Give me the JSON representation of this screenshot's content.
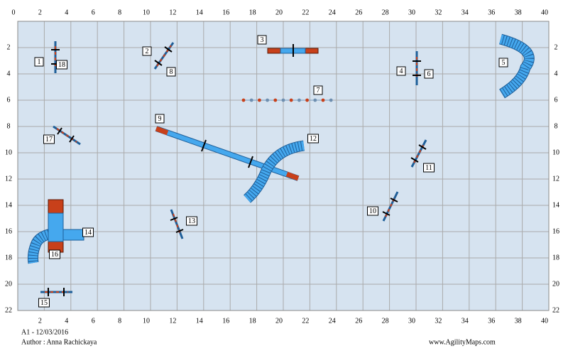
{
  "axes": {
    "top_labels": [
      0,
      2,
      4,
      6,
      8,
      10,
      12,
      14,
      16,
      18,
      20,
      22,
      24,
      26,
      28,
      30,
      32,
      34,
      36,
      38,
      40
    ],
    "bottom_labels": [
      2,
      4,
      6,
      8,
      10,
      12,
      14,
      16,
      18,
      20,
      22,
      24,
      26,
      28,
      30,
      32,
      34,
      36,
      38,
      40
    ],
    "left_labels": [
      2,
      4,
      6,
      8,
      10,
      12,
      14,
      16,
      18,
      20,
      22
    ],
    "right_labels": [
      2,
      4,
      6,
      8,
      10,
      12,
      14,
      16,
      18,
      20,
      22
    ]
  },
  "obstacles": [
    {
      "label": "1"
    },
    {
      "label": "2"
    },
    {
      "label": "3"
    },
    {
      "label": "4"
    },
    {
      "label": "5"
    },
    {
      "label": "6"
    },
    {
      "label": "7"
    },
    {
      "label": "8"
    },
    {
      "label": "9"
    },
    {
      "label": "10"
    },
    {
      "label": "11"
    },
    {
      "label": "12"
    },
    {
      "label": "13"
    },
    {
      "label": "14"
    },
    {
      "label": "15"
    },
    {
      "label": "16"
    },
    {
      "label": "17"
    },
    {
      "label": "18"
    }
  ],
  "footer": {
    "course": "A1 - 12/03/2016",
    "author": "Author : Anna Rachickaya",
    "site": "www.AgilityMaps.com"
  }
}
